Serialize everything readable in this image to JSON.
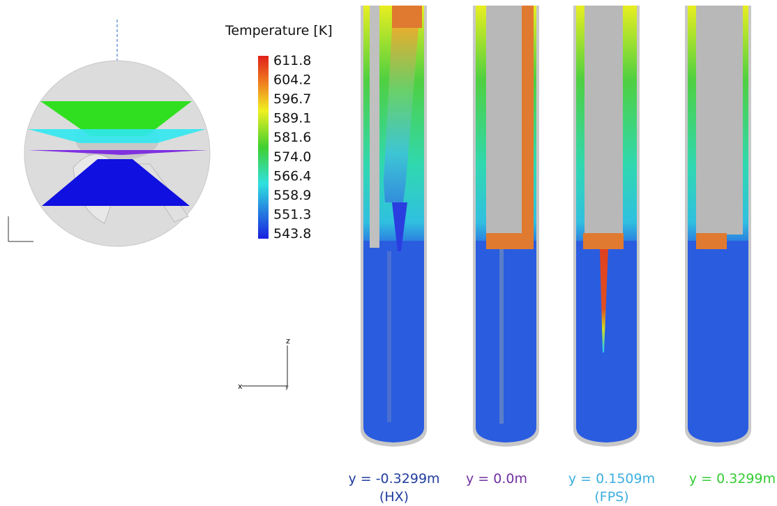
{
  "legend": {
    "title": "Temperature [K]",
    "labels": [
      "611.8",
      "604.2",
      "596.7",
      "589.1",
      "581.6",
      "574.0",
      "566.4",
      "558.9",
      "551.3",
      "543.8"
    ]
  },
  "axes": {
    "z": "z",
    "x": "x",
    "y": "y"
  },
  "slices": [
    {
      "label": "y = -0.3299m",
      "sublabel": "(HX)"
    },
    {
      "label": "y = 0.0m"
    },
    {
      "label": "y = 0.1509m",
      "sublabel": "(FPS)"
    },
    {
      "label": "y = 0.3299m"
    }
  ]
}
